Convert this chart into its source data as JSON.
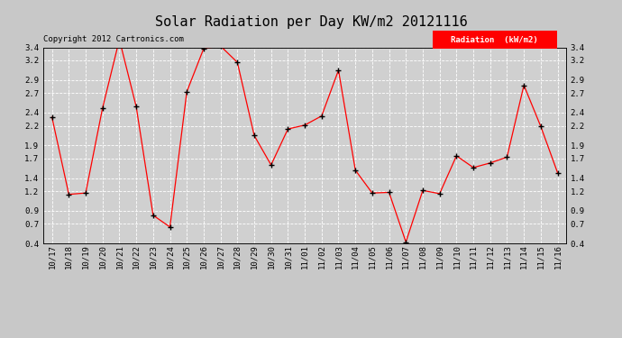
{
  "title": "Solar Radiation per Day KW/m2 20121116",
  "copyright": "Copyright 2012 Cartronics.com",
  "legend_label": "Radiation  (kW/m2)",
  "dates": [
    "10/17",
    "10/18",
    "10/19",
    "10/20",
    "10/21",
    "10/22",
    "10/23",
    "10/24",
    "10/25",
    "10/26",
    "10/27",
    "10/28",
    "10/29",
    "10/30",
    "10/31",
    "11/01",
    "11/02",
    "11/03",
    "11/04",
    "11/05",
    "11/06",
    "11/07",
    "11/08",
    "11/09",
    "11/10",
    "11/11",
    "11/12",
    "11/13",
    "11/14",
    "11/15",
    "11/16"
  ],
  "values": [
    2.33,
    1.15,
    1.17,
    2.47,
    3.52,
    2.49,
    0.83,
    0.65,
    2.72,
    3.38,
    3.42,
    3.17,
    2.05,
    1.6,
    2.15,
    2.21,
    2.35,
    3.05,
    1.52,
    1.17,
    1.18,
    0.42,
    1.21,
    1.16,
    1.74,
    1.56,
    1.63,
    1.72,
    2.82,
    2.19,
    1.48
  ],
  "ylim": [
    0.4,
    3.4
  ],
  "yticks": [
    0.4,
    0.7,
    0.9,
    1.2,
    1.4,
    1.7,
    1.9,
    2.2,
    2.4,
    2.7,
    2.9,
    3.2,
    3.4
  ],
  "line_color": "red",
  "marker_color": "black",
  "bg_color": "#c8c8c8",
  "plot_bg_color": "#d0d0d0",
  "grid_color": "white",
  "title_fontsize": 11,
  "copyright_fontsize": 6.5,
  "tick_fontsize": 6.5,
  "legend_bg_color": "red",
  "legend_text_color": "white",
  "legend_fontsize": 6.5
}
